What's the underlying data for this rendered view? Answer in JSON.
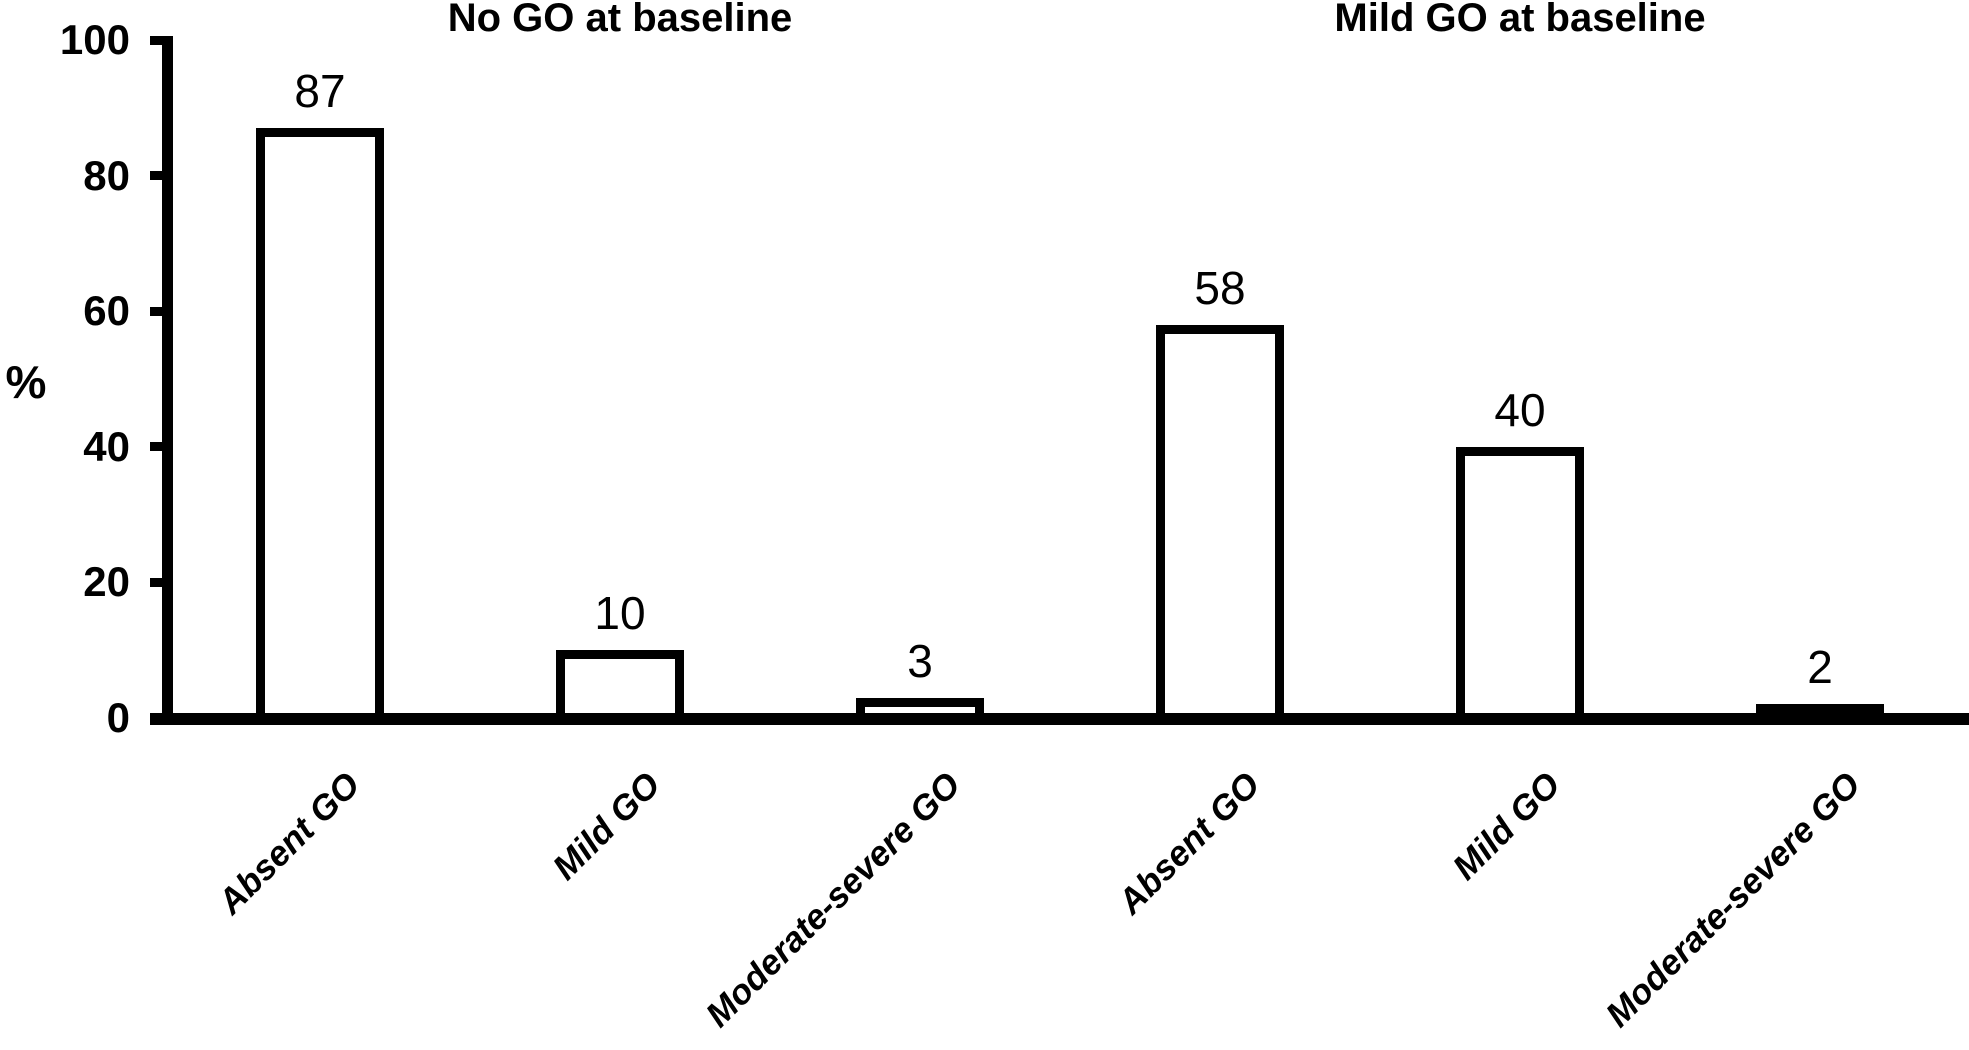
{
  "figure": {
    "background_color": "#ffffff",
    "ink_color": "#000000"
  },
  "chart_data": {
    "type": "bar",
    "title": "",
    "ylabel": "%",
    "xlabel": "",
    "ylim": [
      0,
      100
    ],
    "yticks": [
      0,
      20,
      40,
      60,
      80,
      100
    ],
    "grid": false,
    "legend": null,
    "bar_fill": "#ffffff",
    "bar_stroke": "#000000",
    "groups": [
      {
        "title": "No GO at baseline",
        "categories": [
          "Absent GO",
          "Mild GO",
          "Moderate-severe GO"
        ],
        "values": [
          87,
          10,
          3
        ],
        "value_labels": [
          "87",
          "10",
          "3"
        ]
      },
      {
        "title": "Mild GO at baseline",
        "categories": [
          "Absent GO",
          "Mild GO",
          "Moderate-severe GO"
        ],
        "values": [
          58,
          40,
          2
        ],
        "value_labels": [
          "58",
          "40",
          "2"
        ]
      }
    ]
  }
}
